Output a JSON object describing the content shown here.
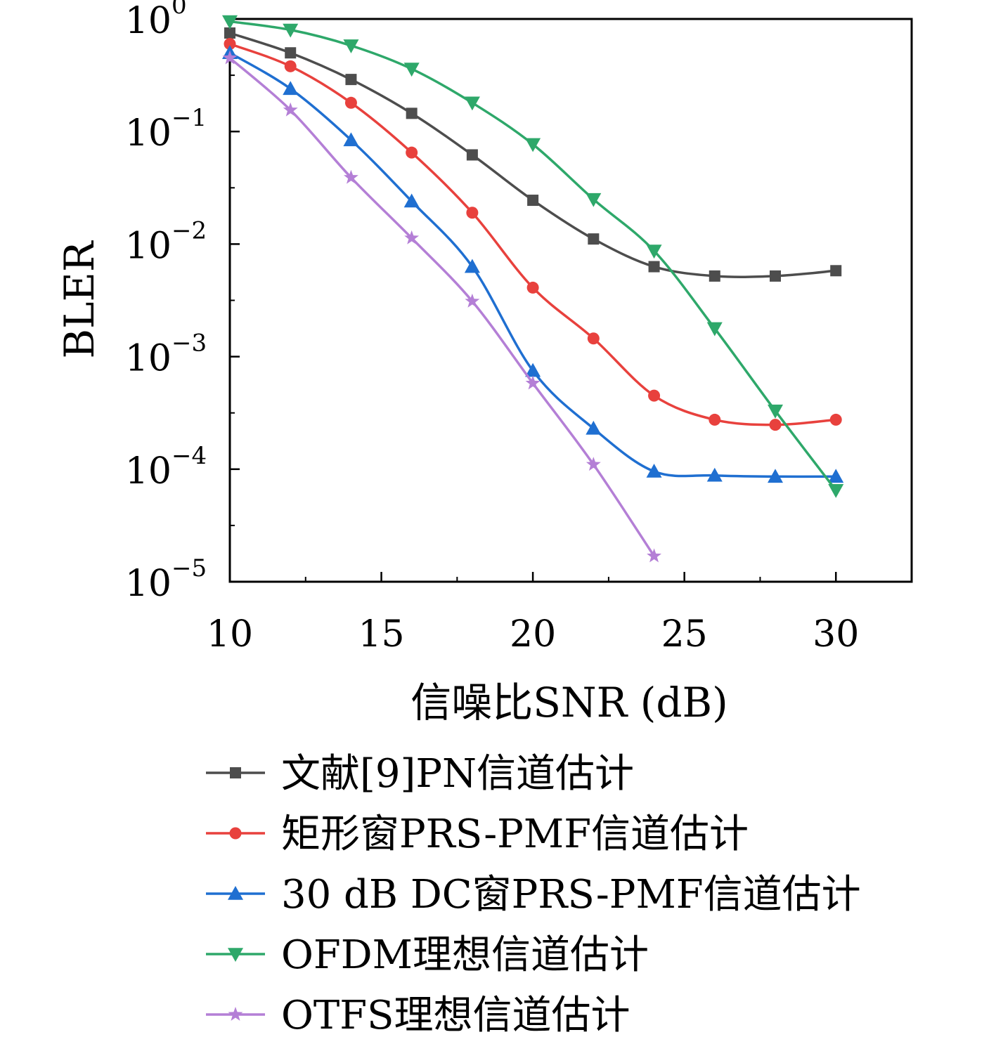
{
  "chart_data": {
    "type": "line",
    "xlabel": "信噪比SNR (dB)",
    "ylabel": "BLER",
    "xlim": [
      10,
      32.5
    ],
    "ylim_log10": [
      -5,
      0
    ],
    "y_scale": "log",
    "x_ticks": [
      10,
      15,
      20,
      25,
      30
    ],
    "x_tick_labels": [
      "10",
      "15",
      "20",
      "25",
      "30"
    ],
    "y_tick_exponents": [
      0,
      -1,
      -2,
      -3,
      -4,
      -5
    ],
    "y_tick_base": "10",
    "y_tick_sup": [
      "0",
      "−1",
      "−2",
      "−3",
      "−4",
      "−5"
    ],
    "grid": false,
    "legend_position": "bottom",
    "series": [
      {
        "name": "文献[9]PN信道估计",
        "color": "#4d4d4d",
        "marker": "square",
        "x": [
          10,
          12,
          14,
          16,
          18,
          20,
          22,
          24,
          26,
          28,
          30
        ],
        "y": [
          0.75,
          0.5,
          0.29,
          0.145,
          0.062,
          0.0245,
          0.0111,
          0.0063,
          0.0052,
          0.0052,
          0.0058
        ]
      },
      {
        "name": "矩形窗PRS-PMF信道估计",
        "color": "#e8413d",
        "marker": "circle",
        "x": [
          10,
          12,
          14,
          16,
          18,
          20,
          22,
          24,
          26,
          28,
          30
        ],
        "y": [
          0.6,
          0.38,
          0.18,
          0.065,
          0.019,
          0.0041,
          0.00145,
          0.00045,
          0.000275,
          0.000248,
          0.000275
        ]
      },
      {
        "name": "30 dB DC窗PRS-PMF信道估计",
        "color": "#1f6fd1",
        "marker": "triangle-up",
        "x": [
          10,
          12,
          14,
          16,
          18,
          20,
          22,
          24,
          26,
          28,
          30
        ],
        "y": [
          0.5,
          0.24,
          0.084,
          0.024,
          0.0063,
          0.00075,
          0.00023,
          9.55e-05,
          8.8e-05,
          8.6e-05,
          8.6e-05
        ]
      },
      {
        "name": "OFDM理想信道估计",
        "color": "#2ea86a",
        "marker": "triangle-down",
        "x": [
          10,
          12,
          14,
          16,
          18,
          20,
          22,
          24,
          26,
          28,
          30
        ],
        "y": [
          0.95,
          0.8,
          0.58,
          0.36,
          0.18,
          0.077,
          0.025,
          0.0087,
          0.00178,
          0.00033,
          6.5e-05
        ]
      },
      {
        "name": "OTFS理想信道估计",
        "color": "#b47fd6",
        "marker": "star",
        "x": [
          10,
          12,
          14,
          16,
          18,
          20,
          22,
          24
        ],
        "y": [
          0.45,
          0.155,
          0.039,
          0.0113,
          0.0031,
          0.00058,
          0.00011,
          1.69e-05
        ]
      }
    ]
  }
}
